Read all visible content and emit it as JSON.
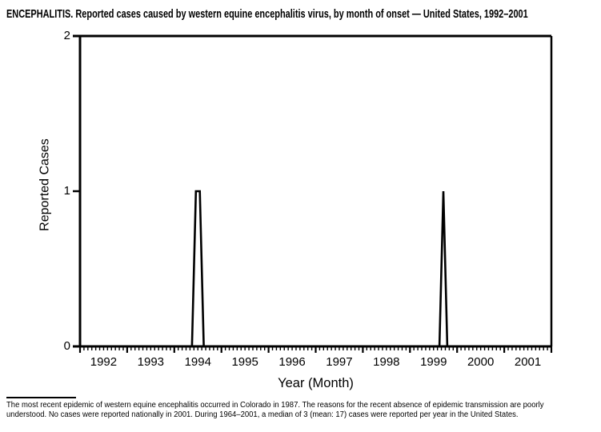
{
  "title": "ENCEPHALITIS. Reported cases caused by western equine encephalitis virus, by month of onset — United States, 1992–2001",
  "footnote": {
    "line1": "The most recent epidemic of western equine encephalitis occurred in Colorado in 1987. The reasons for the recent absence of epidemic transmission are poorly",
    "line2": "understood. No cases were reported nationally in 2001. During 1964–2001, a median of 3 (mean: 17) cases were reported per year in the United States."
  },
  "chart_data": {
    "type": "line",
    "title": "ENCEPHALITIS. Reported cases caused by western equine encephalitis virus, by month of onset — United States, 1992–2001",
    "xlabel": "Year (Month)",
    "ylabel": "Reported Cases",
    "x_years": [
      1992,
      1993,
      1994,
      1995,
      1996,
      1997,
      1998,
      1999,
      2000,
      2001
    ],
    "x_unit": "month",
    "y_ticks": [
      0,
      1,
      2
    ],
    "ylim": [
      0,
      2
    ],
    "grid": false,
    "legend": false,
    "line_color": "#000000",
    "default_value": 0,
    "nonzero_points": [
      {
        "year": 1994,
        "month": "Jun",
        "month_num": 6,
        "value": 1
      },
      {
        "year": 1994,
        "month": "Jul",
        "month_num": 7,
        "value": 1
      },
      {
        "year": 1999,
        "month": "Sep",
        "month_num": 9,
        "value": 1
      }
    ]
  }
}
